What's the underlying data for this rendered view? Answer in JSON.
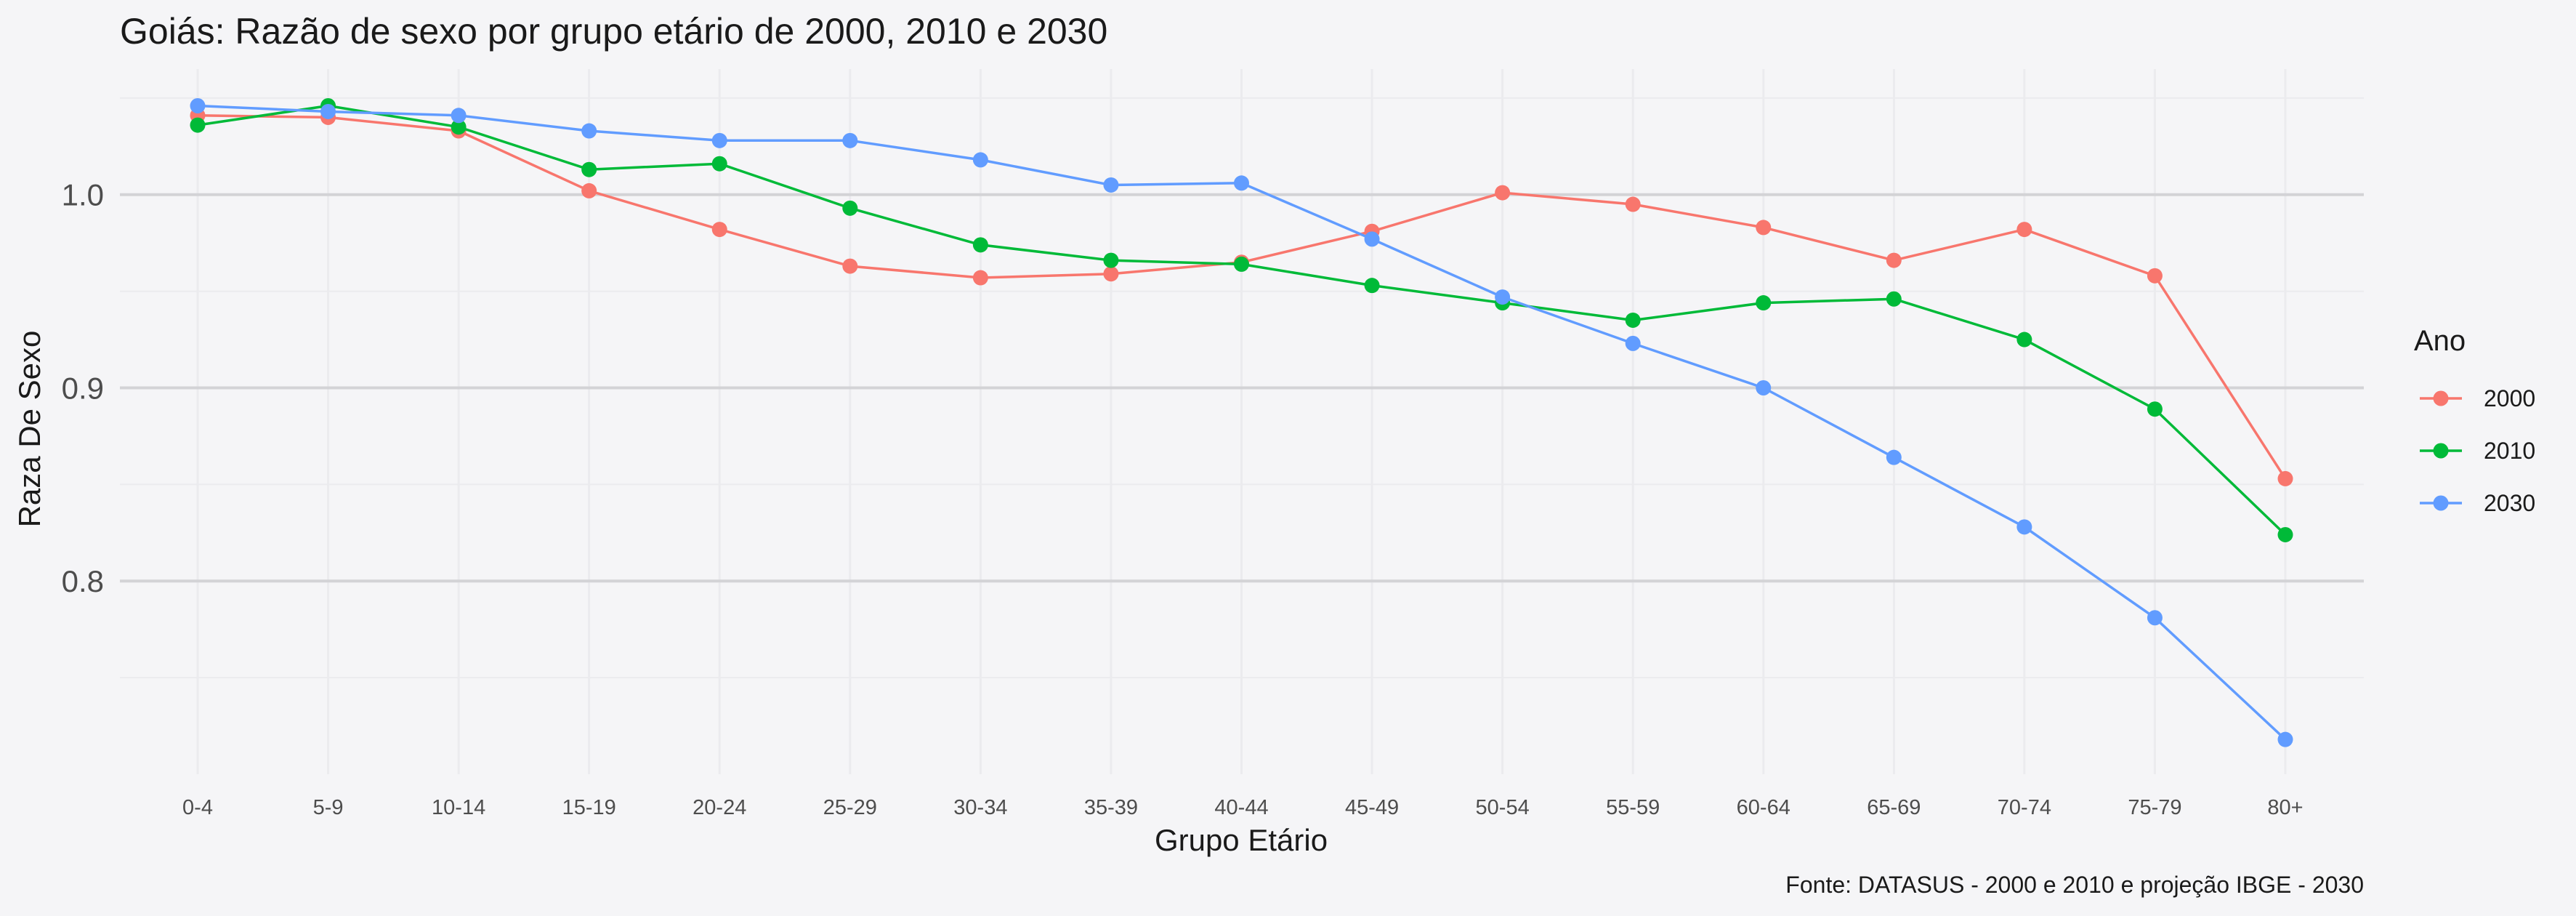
{
  "chart_data": {
    "type": "line",
    "title": "Goiás: Razão de sexo por grupo etário de 2000, 2010 e 2030",
    "xlabel": "Grupo Etário",
    "ylabel": "Raza De Sexo",
    "caption": "Fonte: DATASUS - 2000 e 2010 e projeção IBGE - 2030",
    "categories": [
      "0-4",
      "5-9",
      "10-14",
      "15-19",
      "20-24",
      "25-29",
      "30-34",
      "35-39",
      "40-44",
      "45-49",
      "50-54",
      "55-59",
      "60-64",
      "65-69",
      "70-74",
      "75-79",
      "80+"
    ],
    "ylim": [
      0.7,
      1.065
    ],
    "yticks": [
      0.8,
      0.9,
      1.0
    ],
    "ytick_labels": [
      "0.8",
      "0.9",
      "1.0"
    ],
    "grid": true,
    "legend": {
      "title": "Ano",
      "position": "right"
    },
    "series": [
      {
        "name": "2000",
        "color": "#F8766D",
        "values": [
          1.041,
          1.04,
          1.033,
          1.002,
          0.982,
          0.963,
          0.957,
          0.959,
          0.965,
          0.981,
          1.001,
          0.995,
          0.983,
          0.966,
          0.982,
          0.958,
          0.853
        ]
      },
      {
        "name": "2010",
        "color": "#00BA38",
        "values": [
          1.036,
          1.046,
          1.035,
          1.013,
          1.016,
          0.993,
          0.974,
          0.966,
          0.964,
          0.953,
          0.944,
          0.935,
          0.944,
          0.946,
          0.925,
          0.889,
          0.824
        ]
      },
      {
        "name": "2030",
        "color": "#619CFF",
        "values": [
          1.046,
          1.043,
          1.041,
          1.033,
          1.028,
          1.028,
          1.018,
          1.005,
          1.006,
          0.977,
          0.947,
          0.923,
          0.9,
          0.864,
          0.828,
          0.781,
          0.718
        ]
      }
    ]
  }
}
